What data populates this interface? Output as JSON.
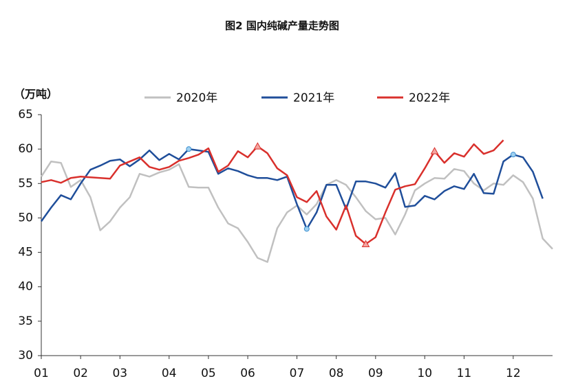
{
  "chart_data": {
    "type": "line",
    "title": "图2 国内纯碱产量走势图",
    "y_label": "（万吨）",
    "categories": [
      "01",
      null,
      null,
      null,
      "02",
      null,
      null,
      null,
      "03",
      null,
      null,
      null,
      null,
      "04",
      null,
      null,
      null,
      "05",
      null,
      null,
      null,
      "06",
      null,
      null,
      null,
      null,
      "07",
      null,
      null,
      null,
      "08",
      null,
      null,
      null,
      "09",
      null,
      null,
      null,
      null,
      "10",
      null,
      null,
      null,
      "11",
      null,
      null,
      null,
      null,
      "12",
      null,
      null,
      null,
      null
    ],
    "series": [
      {
        "name": "2020年",
        "color": "#c0c0c0",
        "values": [
          56,
          58.2,
          58,
          54.5,
          55.5,
          53,
          48.2,
          49.5,
          51.5,
          53,
          56.4,
          56,
          56.6,
          57,
          57.8,
          54.5,
          54.4,
          54.4,
          51.5,
          49.2,
          48.5,
          46.5,
          44.2,
          43.6,
          48.5,
          50.8,
          51.8,
          50.5,
          52,
          54.8,
          55.5,
          54.8,
          53,
          51,
          49.8,
          50,
          47.6,
          50.5,
          54,
          55,
          55.8,
          55.7,
          57.1,
          56.8,
          55,
          54,
          55,
          54.8,
          56.2,
          55.2,
          52.8,
          47,
          45.5
        ]
      },
      {
        "name": "2021年",
        "color": "#1f4e9a",
        "highlight": [
          15,
          27,
          48
        ],
        "values": [
          49.5,
          51.5,
          53.3,
          52.7,
          55,
          57,
          57.6,
          58.3,
          58.5,
          57.5,
          58.5,
          59.8,
          58.4,
          59.3,
          58.5,
          60,
          59.8,
          59.6,
          56.4,
          57.2,
          56.8,
          56.2,
          55.8,
          55.8,
          55.5,
          56,
          52,
          48.4,
          50.8,
          54.8,
          54.8,
          51.3,
          55.3,
          55.3,
          55,
          54.4,
          56.5,
          51.6,
          51.8,
          53.2,
          52.7,
          53.9,
          54.6,
          54.2,
          56.4,
          53.6,
          53.5,
          58.2,
          59.2,
          58.8,
          56.7,
          52.8,
          null
        ]
      },
      {
        "name": "2022年",
        "color": "#d9302c",
        "highlight": [
          22,
          33,
          40
        ],
        "values": [
          55.2,
          55.5,
          55.1,
          55.8,
          56,
          55.9,
          55.8,
          55.7,
          57.6,
          58.2,
          58.8,
          57.4,
          57,
          57.4,
          58.3,
          58.7,
          59.2,
          60.1,
          56.7,
          57.6,
          59.7,
          58.8,
          60.4,
          59.4,
          57.2,
          56.2,
          53,
          52.3,
          53.9,
          50.2,
          48.3,
          51.8,
          47.4,
          46.2,
          47.2,
          50.8,
          54.1,
          54.6,
          54.9,
          57.2,
          59.7,
          58,
          59.4,
          58.9,
          60.7,
          59.3,
          59.8,
          61.3,
          null,
          null,
          null,
          null,
          null
        ]
      }
    ],
    "ylim": [
      30,
      65
    ],
    "yticks": [
      30,
      35,
      40,
      45,
      50,
      55,
      60,
      65
    ]
  }
}
